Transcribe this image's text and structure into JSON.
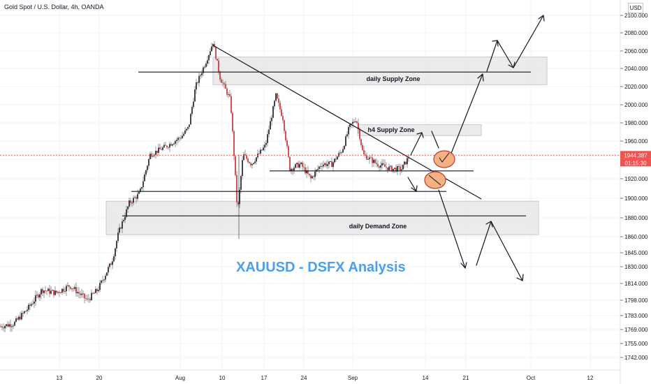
{
  "chart_data": {
    "type": "candlestick",
    "symbol_header": "Gold Spot / U.S. Dollar, 4h, OANDA",
    "currency": "USD",
    "watermark": "XAUUSD - DSFX Analysis",
    "last_price": "1944.387",
    "countdown": "01:15:30",
    "y_ticks": [
      2100,
      2080,
      2060,
      2040,
      2020,
      2000,
      1980,
      1960,
      1940,
      1920,
      1900,
      1880,
      1860,
      1845,
      1830,
      1814,
      1798,
      1783,
      1769,
      1755,
      1742
    ],
    "y_tick_labels": [
      "2100.000",
      "2080.000",
      "2060.000",
      "2040.000",
      "2020.000",
      "2000.000",
      "1980.000",
      "1960.000",
      "1940.000",
      "1920.000",
      "1900.000",
      "1880.000",
      "1860.000",
      "1845.000",
      "1830.000",
      "1814.000",
      "1798.000",
      "1783.000",
      "1769.000",
      "1755.000",
      "1742.000"
    ],
    "x_ticks": [
      "13",
      "20",
      "Aug",
      "10",
      "17",
      "24",
      "Sep",
      "14",
      "21",
      "Oct",
      "12"
    ],
    "price_path": [
      [
        0,
        1772
      ],
      [
        20,
        1775
      ],
      [
        40,
        1790
      ],
      [
        60,
        1808
      ],
      [
        80,
        1805
      ],
      [
        100,
        1812
      ],
      [
        125,
        1798
      ],
      [
        140,
        1808
      ],
      [
        160,
        1835
      ],
      [
        170,
        1865
      ],
      [
        185,
        1895
      ],
      [
        200,
        1905
      ],
      [
        215,
        1945
      ],
      [
        240,
        1955
      ],
      [
        260,
        1965
      ],
      [
        270,
        1975
      ],
      [
        280,
        2020
      ],
      [
        295,
        2048
      ],
      [
        305,
        2070
      ],
      [
        315,
        2030
      ],
      [
        330,
        2005
      ],
      [
        340,
        1885
      ],
      [
        348,
        1945
      ],
      [
        360,
        1935
      ],
      [
        380,
        1955
      ],
      [
        395,
        2010
      ],
      [
        405,
        1985
      ],
      [
        415,
        1930
      ],
      [
        430,
        1935
      ],
      [
        445,
        1920
      ],
      [
        460,
        1935
      ],
      [
        475,
        1935
      ],
      [
        490,
        1950
      ],
      [
        500,
        1975
      ],
      [
        510,
        1985
      ],
      [
        520,
        1945
      ],
      [
        540,
        1935
      ],
      [
        560,
        1930
      ],
      [
        575,
        1930
      ],
      [
        585,
        1942
      ]
    ],
    "zones": [
      {
        "label": "daily Supply Zone",
        "top": 2053,
        "bottom": 2022
      },
      {
        "label": "h4 Supply Zone",
        "top": 1978,
        "bottom": 1966
      },
      {
        "label": "daily Demand Zone",
        "top": 1897,
        "bottom": 1862
      }
    ],
    "horizontal_levels": [
      2036,
      1928,
      1907,
      1882
    ],
    "ylim": [
      1735,
      2115
    ]
  }
}
